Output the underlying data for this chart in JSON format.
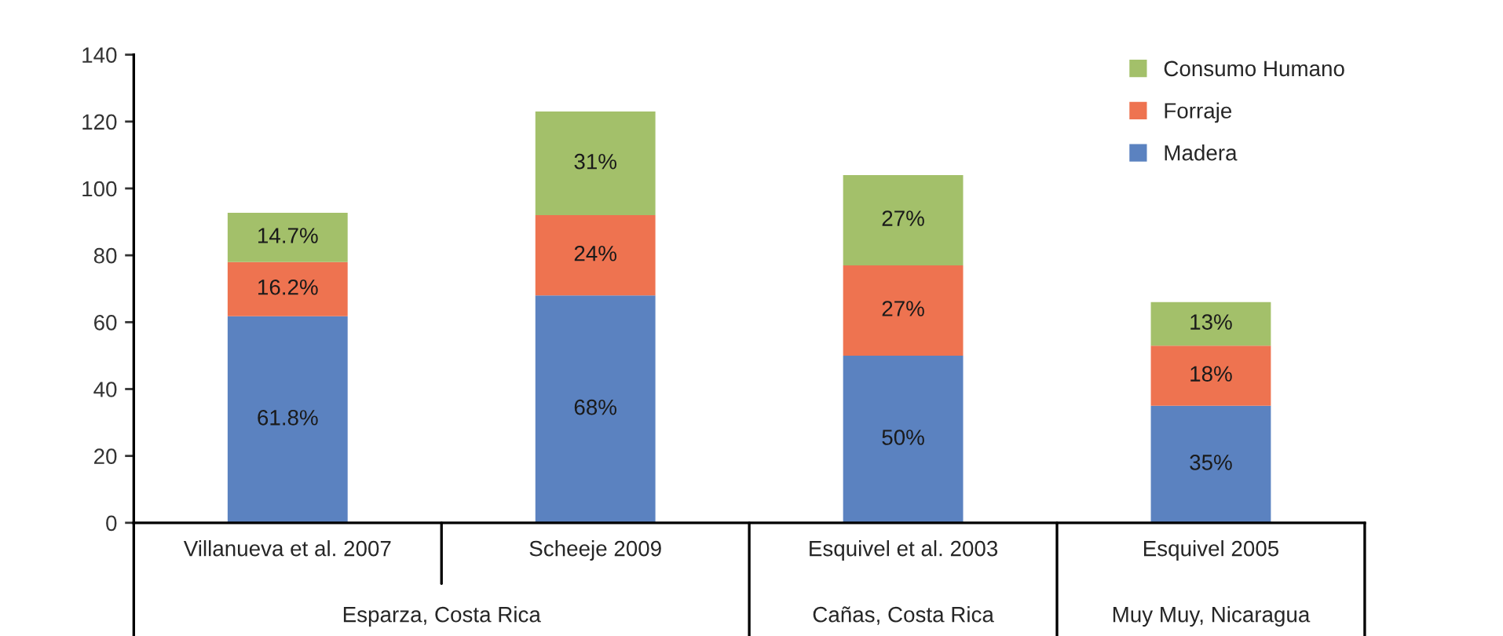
{
  "chart_data": {
    "type": "bar",
    "stacked": true,
    "categories": [
      "Villanueva et al. 2007",
      "Scheeje 2009",
      "Esquivel et al. 2003",
      "Esquivel 2005"
    ],
    "series": [
      {
        "name": "Madera",
        "color": "#5b82c0",
        "values": [
          61.8,
          68,
          50,
          35
        ],
        "value_labels": [
          "61.8%",
          "68%",
          "50%",
          "35%"
        ]
      },
      {
        "name": "Forraje",
        "color": "#ee7350",
        "values": [
          16.2,
          24,
          27,
          18
        ],
        "value_labels": [
          "16.2%",
          "24%",
          "27%",
          "18%"
        ]
      },
      {
        "name": "Consumo Humano",
        "color": "#a3c06a",
        "values": [
          14.7,
          31,
          27,
          13
        ],
        "value_labels": [
          "14.7%",
          "31%",
          "27%",
          "13%"
        ]
      }
    ],
    "annotations": [
      "Esparza, Costa Rica",
      "Cañas, Costa Rica",
      "Muy Muy, Nicaragua"
    ],
    "ylim": [
      0,
      140
    ],
    "yticks": [
      0,
      20,
      40,
      60,
      80,
      100,
      120,
      140
    ],
    "legend": "top right",
    "grid": false
  }
}
